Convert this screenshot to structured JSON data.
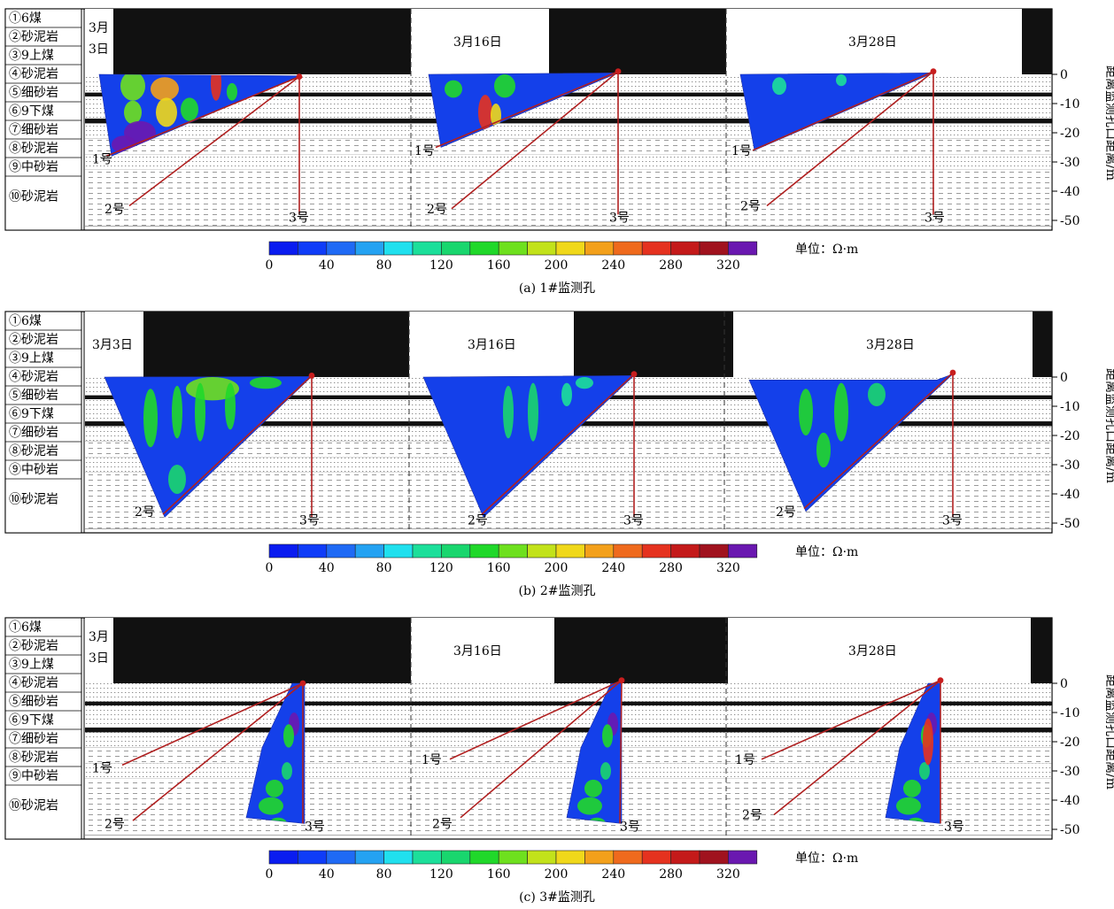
{
  "layers": [
    "①6煤",
    "②砂泥岩",
    "③9上煤",
    "④砂泥岩",
    "⑤细砂岩",
    "⑥9下煤",
    "⑦细砂岩",
    "⑧砂泥岩",
    "⑨中砂岩",
    "⑩砂泥岩"
  ],
  "depth_axis": {
    "label": "距离监测孔口距离/m",
    "ticks": [
      "0",
      "-10",
      "-20",
      "-30",
      "-40",
      "-50"
    ]
  },
  "colorbar": {
    "unit": "单位：Ω·m",
    "ticks": [
      "0",
      "40",
      "80",
      "120",
      "160",
      "200",
      "240",
      "280",
      "320"
    ],
    "colors": [
      "#0a1cf0",
      "#0f3cf8",
      "#1f6af5",
      "#24a2f2",
      "#20e0ee",
      "#1cdf9a",
      "#19d66e",
      "#20d82a",
      "#6ee01e",
      "#c2e21a",
      "#f0d81a",
      "#f3a01b",
      "#ef6a1d",
      "#e5321f",
      "#c41a1a",
      "#a0121e",
      "#6a18b0"
    ]
  },
  "holes": {
    "hole1": "1号",
    "hole2": "2号",
    "hole3": "3号"
  },
  "panels": [
    {
      "caption": "(a)  1#监测孔",
      "dates": [
        "3月3日",
        "3月16日",
        "3月28日"
      ]
    },
    {
      "caption": "(b)  2#监测孔",
      "dates": [
        "3月3日",
        "3月16日",
        "3月28日"
      ]
    },
    {
      "caption": "(c)  3#监测孔",
      "dates": [
        "3月3日",
        "3月16日",
        "3月28日"
      ]
    }
  ]
}
